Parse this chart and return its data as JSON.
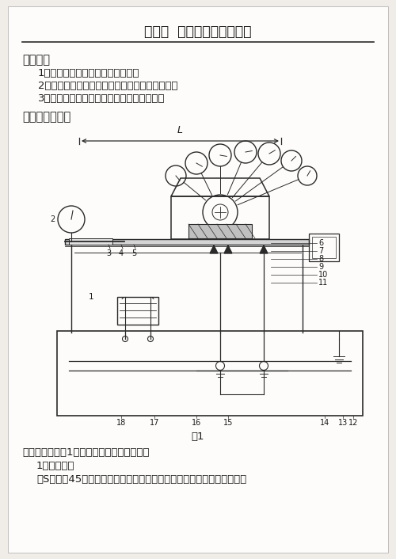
{
  "title": "实验四  滑动轴承实验指导书",
  "section1_title": "一、目的",
  "objectives": [
    "1．观察滑动轴承的液体摩擦现象。",
    "2．了解摩擦系数与比压及滑动速度之间的关系。",
    "3．按油压分布曲线求轴承油膜的承载能力。"
  ],
  "section2_title": "二、实验机简介",
  "fig_caption": "图1",
  "para1": "试验机结构如图1所示，它包括以下几部分：",
  "sub1_title": "1．轴与轴瓦",
  "sub1_text": "轴S材料为45钢、轴颈经表面淬火、磨光，通过滚动轴承安装在支座上。",
  "bg_color": "#f0ede8",
  "paper_color": "#fdfcfa",
  "text_color": "#1a1a1a",
  "line_color": "#2a2a2a"
}
